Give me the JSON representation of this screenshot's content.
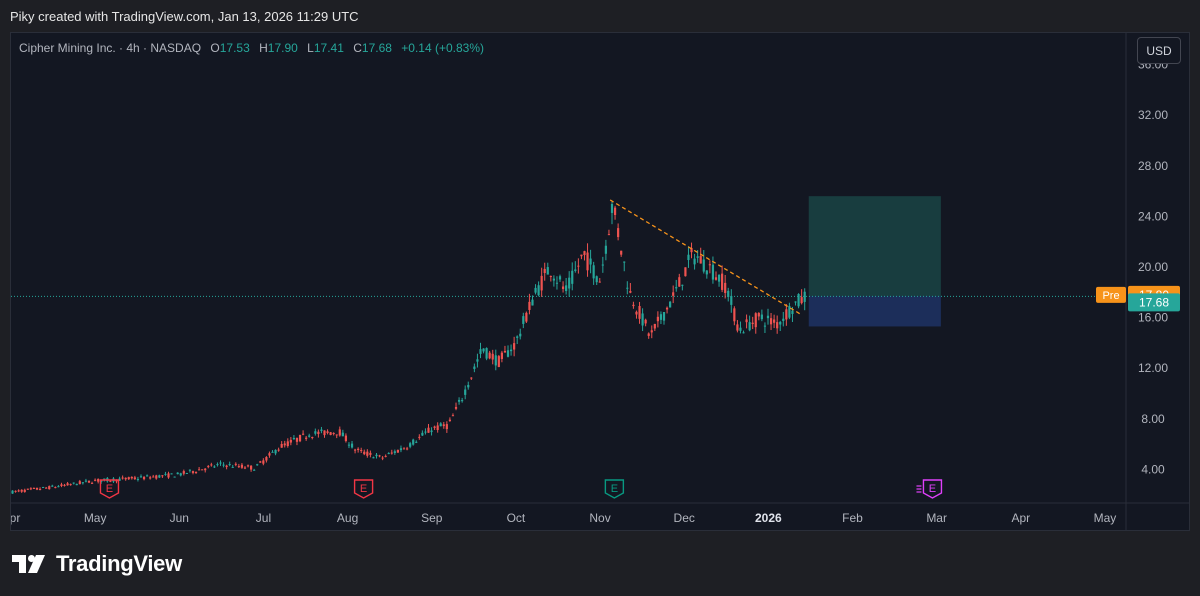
{
  "caption": "Piky created with TradingView.com, Jan 13, 2026 11:29 UTC",
  "legend": {
    "symbol": "Cipher Mining Inc. · 4h · NASDAQ",
    "open_label": "O",
    "open": "17.53",
    "high_label": "H",
    "high": "17.90",
    "low_label": "L",
    "low": "17.41",
    "close_label": "C",
    "close": "17.68",
    "change": "+0.14 (+0.83%)"
  },
  "currency": "USD",
  "brand": "TradingView",
  "colors": {
    "up": "#26a69a",
    "down": "#ef5350",
    "background": "#131722",
    "premarket": "#f7931a",
    "trendline": "#f7931a",
    "target_zone": "#1b4b4a",
    "stop_zone": "#1f3569",
    "earnings_past": "#f23645",
    "earnings_next_fill": "#089981",
    "earnings_future": "#e040fb"
  },
  "chart_data": {
    "type": "candlestick",
    "interval": "4h",
    "x_ticks": [
      "Apr",
      "May",
      "Jun",
      "Jul",
      "Aug",
      "Sep",
      "Oct",
      "Nov",
      "Dec",
      "2026",
      "Feb",
      "Mar",
      "Apr",
      "May"
    ],
    "y_ticks": [
      "4.00",
      "8.00",
      "12.00",
      "16.00",
      "20.00",
      "24.00",
      "28.00",
      "32.00",
      "36.00"
    ],
    "ylim": [
      1.5,
      38.5
    ],
    "xlim": [
      0,
      13.25
    ],
    "price_path": [
      [
        0.0,
        2.2
      ],
      [
        0.5,
        2.6
      ],
      [
        1.0,
        3.1
      ],
      [
        1.5,
        3.3
      ],
      [
        2.0,
        3.6
      ],
      [
        2.5,
        4.4
      ],
      [
        2.9,
        4.1
      ],
      [
        3.2,
        5.8
      ],
      [
        3.55,
        6.8
      ],
      [
        3.9,
        7.0
      ],
      [
        4.1,
        5.5
      ],
      [
        4.4,
        4.9
      ],
      [
        4.7,
        5.8
      ],
      [
        5.0,
        7.2
      ],
      [
        5.2,
        7.5
      ],
      [
        5.35,
        9.5
      ],
      [
        5.6,
        13.5
      ],
      [
        5.8,
        12.5
      ],
      [
        6.0,
        14.0
      ],
      [
        6.2,
        17.5
      ],
      [
        6.4,
        20.0
      ],
      [
        6.6,
        18.0
      ],
      [
        6.8,
        21.0
      ],
      [
        7.0,
        19.0
      ],
      [
        7.15,
        25.0
      ],
      [
        7.35,
        18.0
      ],
      [
        7.6,
        14.5
      ],
      [
        7.9,
        18.0
      ],
      [
        8.1,
        21.0
      ],
      [
        8.3,
        20.0
      ],
      [
        8.5,
        18.5
      ],
      [
        8.65,
        15.0
      ],
      [
        8.9,
        16.0
      ],
      [
        9.1,
        15.5
      ],
      [
        9.3,
        17.0
      ],
      [
        9.45,
        17.68
      ]
    ],
    "current_close": 17.68,
    "premarket": {
      "label": "Pre",
      "value": 17.8
    },
    "trendline": {
      "from": [
        7.12,
        25.3
      ],
      "to": [
        9.4,
        16.2
      ]
    },
    "position": {
      "entry": 17.7,
      "target": 25.6,
      "stop": 15.3,
      "x_start": 9.48,
      "x_end": 11.05
    },
    "earnings": [
      {
        "x": 1.17,
        "label": "E",
        "state": "past"
      },
      {
        "x": 4.19,
        "label": "E",
        "state": "past"
      },
      {
        "x": 7.17,
        "label": "E",
        "state": "past"
      },
      {
        "x": 10.95,
        "label": "E",
        "state": "upcoming"
      }
    ]
  }
}
